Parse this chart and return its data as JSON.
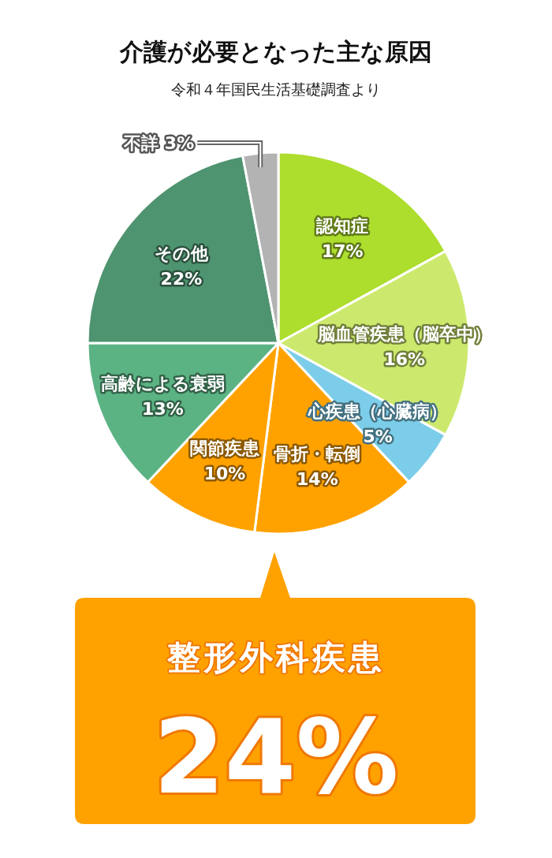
{
  "chart_data": {
    "type": "pie",
    "title": "介護が必要となった主な原因",
    "subtitle": "令和４年国民生活基礎調査より",
    "categories": [
      "認知症",
      "脳血管疾患（脳卒中）",
      "心疾患（心臓病）",
      "骨折・転倒",
      "関節疾患",
      "高齢による衰弱",
      "その他",
      "不詳"
    ],
    "values": [
      17,
      16,
      5,
      14,
      10,
      13,
      22,
      3
    ],
    "colors": [
      "#addd2d",
      "#cce96d",
      "#7ccde9",
      "#ffa200",
      "#ffa200",
      "#5bb383",
      "#4f9470",
      "#b3b3b3"
    ],
    "value_labels": [
      "17%",
      "16%",
      "5%",
      "14%",
      "10%",
      "13%",
      "22%",
      "3%"
    ],
    "annotations": [
      "整形外科疾患",
      "24%"
    ]
  }
}
